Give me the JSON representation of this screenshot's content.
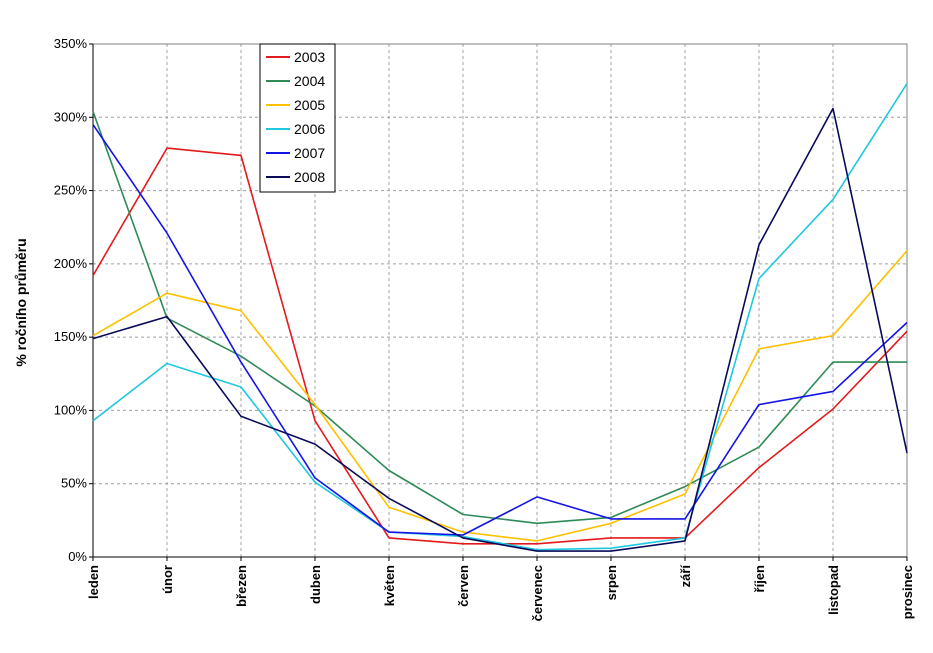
{
  "chart_data": {
    "type": "line",
    "title": "",
    "xlabel": "",
    "ylabel": "% ročního průměru",
    "ylim": [
      0,
      350
    ],
    "y_tick_values": [
      0,
      50,
      100,
      150,
      200,
      250,
      300,
      350
    ],
    "y_tick_labels": [
      "0%",
      "50%",
      "100%",
      "150%",
      "200%",
      "250%",
      "300%",
      "350%"
    ],
    "grid": true,
    "legend_position": "top-left",
    "categories": [
      "leden",
      "únor",
      "březen",
      "duben",
      "květen",
      "červen",
      "červenec",
      "srpen",
      "září",
      "říjen",
      "listopad",
      "prosinec"
    ],
    "series": [
      {
        "name": "2003",
        "color": "#e31a1c",
        "values": [
          192,
          279,
          274,
          93,
          13,
          9,
          9,
          13,
          13,
          61,
          101,
          154
        ]
      },
      {
        "name": "2004",
        "color": "#2e8b57",
        "values": [
          304,
          163,
          137,
          103,
          59,
          29,
          23,
          27,
          48,
          75,
          133,
          133
        ]
      },
      {
        "name": "2005",
        "color": "#ffc000",
        "values": [
          151,
          180,
          168,
          104,
          34,
          17,
          11,
          23,
          43,
          142,
          151,
          209
        ]
      },
      {
        "name": "2006",
        "color": "#1ec8e0",
        "values": [
          93,
          132,
          116,
          51,
          17,
          14,
          5,
          6,
          13,
          190,
          244,
          323
        ]
      },
      {
        "name": "2007",
        "color": "#1414e6",
        "values": [
          295,
          221,
          133,
          54,
          17,
          15,
          41,
          26,
          26,
          104,
          113,
          160
        ]
      },
      {
        "name": "2008",
        "color": "#0a0a5a",
        "values": [
          149,
          164,
          96,
          77,
          40,
          13,
          4,
          4,
          11,
          213,
          306,
          71
        ]
      }
    ]
  }
}
